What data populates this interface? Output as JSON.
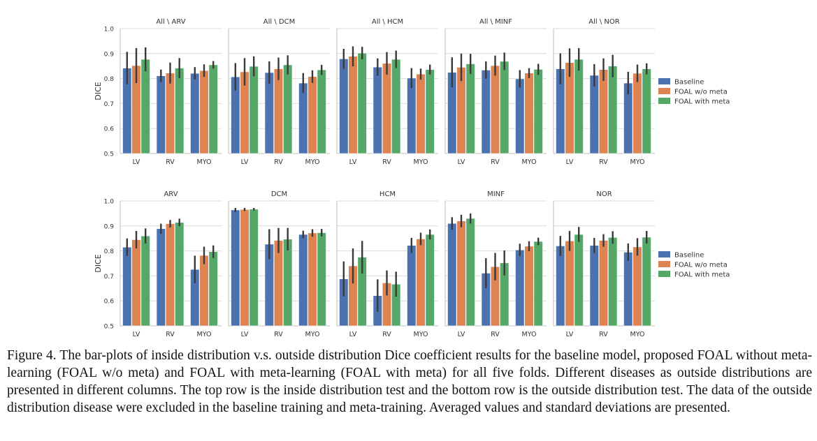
{
  "caption": "Figure 4. The bar-plots of inside distribution v.s.  outside distribution Dice coefficient results for the baseline model, proposed FOAL without meta-learning (FOAL w/o meta) and FOAL with meta-learning (FOAL with meta) for all five folds. Different diseases as outside distributions are presented in different columns. The top row is the inside distribution test and the bottom row is the outside distribution test. The data of the outside distribution disease were excluded in the baseline training and meta-training. Averaged values and standard deviations are presented.",
  "colors": {
    "Baseline": "#4c72b0",
    "FOAL w/o meta": "#dd8452",
    "FOAL with meta": "#55a868",
    "errorbar": "#3a3a3a",
    "grid": "#d9d9d9",
    "axis_text": "#333333"
  },
  "chart_data": [
    {
      "row_label": "top",
      "type": "bar",
      "ylabel": "DICE",
      "ylim": [
        0.5,
        1.0
      ],
      "yticks": [
        "0.5",
        "0.6",
        "0.7",
        "0.8",
        "0.9",
        "1.0"
      ],
      "categories": [
        "LV",
        "RV",
        "MYO"
      ],
      "series_names": [
        "Baseline",
        "FOAL w/o meta",
        "FOAL with meta"
      ],
      "legend": {
        "position": "right",
        "entries": [
          "Baseline",
          "FOAL w/o meta",
          "FOAL with meta"
        ]
      },
      "grid": true,
      "panels": [
        {
          "title": "All \\ ARV",
          "values": [
            [
              0.842,
              0.852,
              0.877
            ],
            [
              0.811,
              0.822,
              0.842
            ],
            [
              0.821,
              0.832,
              0.855
            ]
          ],
          "errors": [
            [
              0.065,
              0.07,
              0.048
            ],
            [
              0.025,
              0.042,
              0.04
            ],
            [
              0.025,
              0.025,
              0.015
            ]
          ]
        },
        {
          "title": "All \\ DCM",
          "values": [
            [
              0.807,
              0.827,
              0.849
            ],
            [
              0.824,
              0.839,
              0.855
            ],
            [
              0.782,
              0.808,
              0.835
            ]
          ],
          "errors": [
            [
              0.055,
              0.055,
              0.04
            ],
            [
              0.045,
              0.045,
              0.038
            ],
            [
              0.04,
              0.025,
              0.02
            ]
          ]
        },
        {
          "title": "All \\ HCM",
          "values": [
            [
              0.879,
              0.889,
              0.902
            ],
            [
              0.846,
              0.861,
              0.877
            ],
            [
              0.802,
              0.818,
              0.836
            ]
          ],
          "errors": [
            [
              0.04,
              0.04,
              0.025
            ],
            [
              0.035,
              0.045,
              0.035
            ],
            [
              0.04,
              0.022,
              0.02
            ]
          ]
        },
        {
          "title": "All \\ MINF",
          "values": [
            [
              0.825,
              0.845,
              0.859
            ],
            [
              0.834,
              0.852,
              0.869
            ],
            [
              0.799,
              0.822,
              0.837
            ]
          ],
          "errors": [
            [
              0.06,
              0.055,
              0.04
            ],
            [
              0.035,
              0.04,
              0.035
            ],
            [
              0.035,
              0.02,
              0.022
            ]
          ]
        },
        {
          "title": "All \\ NOR",
          "values": [
            [
              0.839,
              0.864,
              0.877
            ],
            [
              0.813,
              0.836,
              0.85
            ],
            [
              0.782,
              0.821,
              0.839
            ]
          ],
          "errors": [
            [
              0.062,
              0.057,
              0.045
            ],
            [
              0.045,
              0.045,
              0.045
            ],
            [
              0.045,
              0.035,
              0.022
            ]
          ]
        }
      ]
    },
    {
      "row_label": "bottom",
      "type": "bar",
      "ylabel": "DICE",
      "ylim": [
        0.5,
        1.0
      ],
      "yticks": [
        "0.5",
        "0.6",
        "0.7",
        "0.8",
        "0.9",
        "1.0"
      ],
      "categories": [
        "LV",
        "RV",
        "MYO"
      ],
      "series_names": [
        "Baseline",
        "FOAL w/o meta",
        "FOAL with meta"
      ],
      "legend": {
        "position": "right",
        "entries": [
          "Baseline",
          "FOAL w/o meta",
          "FOAL with meta"
        ]
      },
      "grid": true,
      "panels": [
        {
          "title": "ARV",
          "values": [
            [
              0.815,
              0.845,
              0.86
            ],
            [
              0.889,
              0.909,
              0.914
            ],
            [
              0.726,
              0.782,
              0.797
            ]
          ],
          "errors": [
            [
              0.035,
              0.035,
              0.03
            ],
            [
              0.02,
              0.015,
              0.015
            ],
            [
              0.055,
              0.035,
              0.025
            ]
          ]
        },
        {
          "title": "DCM",
          "values": [
            [
              0.964,
              0.966,
              0.967
            ],
            [
              0.827,
              0.842,
              0.847
            ],
            [
              0.866,
              0.872,
              0.873
            ]
          ],
          "errors": [
            [
              0.008,
              0.006,
              0.005
            ],
            [
              0.06,
              0.05,
              0.045
            ],
            [
              0.015,
              0.015,
              0.015
            ]
          ]
        },
        {
          "title": "HCM",
          "values": [
            [
              0.688,
              0.74,
              0.775
            ],
            [
              0.621,
              0.672,
              0.667
            ],
            [
              0.822,
              0.848,
              0.866
            ]
          ],
          "errors": [
            [
              0.07,
              0.07,
              0.065
            ],
            [
              0.065,
              0.05,
              0.05
            ],
            [
              0.03,
              0.025,
              0.02
            ]
          ]
        },
        {
          "title": "MINF",
          "values": [
            [
              0.91,
              0.92,
              0.93
            ],
            [
              0.711,
              0.737,
              0.752
            ],
            [
              0.804,
              0.819,
              0.838
            ]
          ],
          "errors": [
            [
              0.025,
              0.025,
              0.02
            ],
            [
              0.06,
              0.055,
              0.05
            ],
            [
              0.025,
              0.02,
              0.015
            ]
          ]
        },
        {
          "title": "NOR",
          "values": [
            [
              0.82,
              0.84,
              0.866
            ],
            [
              0.822,
              0.842,
              0.854
            ],
            [
              0.795,
              0.816,
              0.855
            ]
          ],
          "errors": [
            [
              0.04,
              0.04,
              0.03
            ],
            [
              0.03,
              0.025,
              0.025
            ],
            [
              0.035,
              0.035,
              0.025
            ]
          ]
        }
      ]
    }
  ]
}
